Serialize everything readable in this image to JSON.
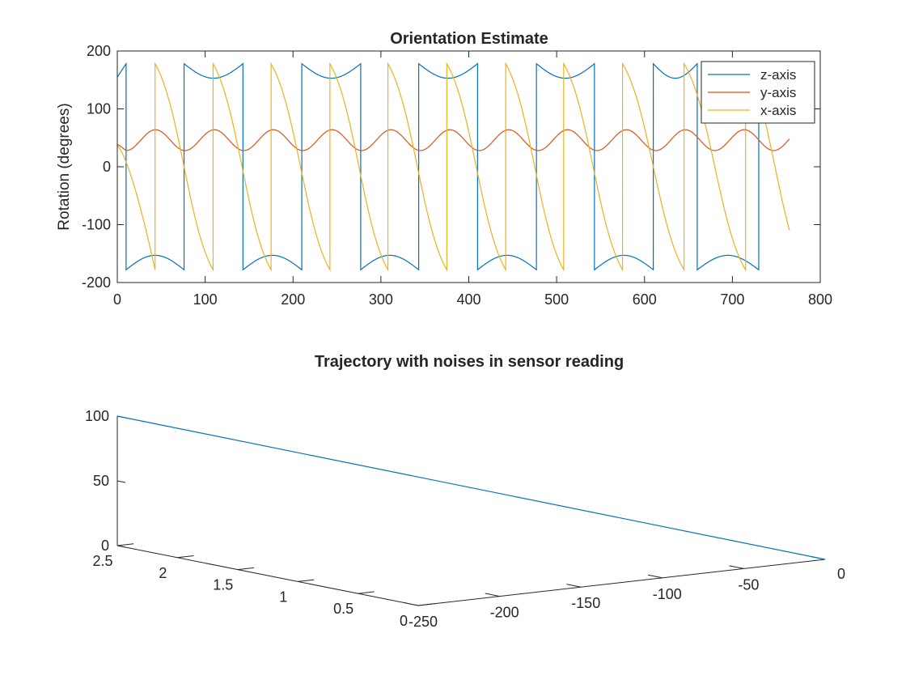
{
  "chart_data": [
    {
      "type": "line",
      "title": "Orientation Estimate",
      "xlabel": "",
      "ylabel": "Rotation (degrees)",
      "xlim": [
        0,
        800
      ],
      "ylim": [
        -200,
        200
      ],
      "xticks": [
        0,
        100,
        200,
        300,
        400,
        500,
        600,
        700,
        800
      ],
      "yticks": [
        -200,
        -100,
        0,
        100,
        200
      ],
      "grid": false,
      "legend_position": "top-right",
      "x_end": 765,
      "series": [
        {
          "name": "z-axis",
          "color": "#0072BD",
          "wrap_times": [
            10,
            76,
            143,
            210,
            277,
            343,
            410,
            477,
            543,
            610,
            660,
            730
          ],
          "wrap_low": -178,
          "wrap_high": 178,
          "segment_shape": "arch",
          "segment_depth": 25
        },
        {
          "name": "y-axis",
          "color": "#D95319",
          "center": 46,
          "amplitude": 18,
          "period": 67,
          "start_phase_value": 38,
          "x_start": 0,
          "x_end": 765
        },
        {
          "name": "x-axis",
          "color": "#EDB120",
          "wrap_times": [
            43,
            109,
            175,
            242,
            308,
            375,
            442,
            508,
            575,
            645,
            715
          ],
          "start_value": 36,
          "segment_low": -178,
          "segment_high": 178,
          "end_value": -72
        }
      ]
    },
    {
      "type": "line",
      "title": "Trajectory with noises in sensor reading",
      "projection": "3d",
      "xlim": [
        -250,
        0
      ],
      "ylim": [
        0,
        2.5
      ],
      "zlim": [
        0,
        100
      ],
      "xticks": [
        -250,
        -200,
        -150,
        -100,
        -50,
        0
      ],
      "yticks": [
        0,
        0.5,
        1,
        1.5,
        2,
        2.5
      ],
      "zticks": [
        0,
        50,
        100
      ],
      "series": [
        {
          "color": "#0072BD",
          "points": [
            {
              "x": 0,
              "y": 0,
              "z": 0
            },
            {
              "x": -250,
              "y": 2.5,
              "z": 100
            }
          ]
        }
      ]
    }
  ]
}
